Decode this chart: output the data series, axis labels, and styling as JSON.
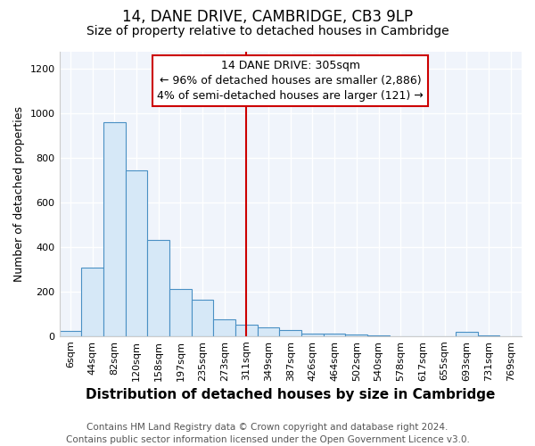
{
  "title": "14, DANE DRIVE, CAMBRIDGE, CB3 9LP",
  "subtitle": "Size of property relative to detached houses in Cambridge",
  "xlabel": "Distribution of detached houses by size in Cambridge",
  "ylabel": "Number of detached properties",
  "categories": [
    "6sqm",
    "44sqm",
    "82sqm",
    "120sqm",
    "158sqm",
    "197sqm",
    "235sqm",
    "273sqm",
    "311sqm",
    "349sqm",
    "387sqm",
    "426sqm",
    "464sqm",
    "502sqm",
    "540sqm",
    "578sqm",
    "617sqm",
    "655sqm",
    "693sqm",
    "731sqm",
    "769sqm"
  ],
  "values": [
    25,
    307,
    962,
    743,
    433,
    212,
    163,
    75,
    50,
    40,
    28,
    12,
    10,
    8,
    5,
    0,
    0,
    0,
    18,
    3,
    0
  ],
  "bar_color": "#d6e8f7",
  "bar_edge_color": "#4a90c4",
  "vline_x_idx": 8,
  "vline_color": "#cc0000",
  "annotation_line1": "14 DANE DRIVE: 305sqm",
  "annotation_line2": "← 96% of detached houses are smaller (2,886)",
  "annotation_line3": "4% of semi-detached houses are larger (121) →",
  "annotation_box_color": "#ffffff",
  "annotation_box_edge": "#cc0000",
  "ylim": [
    0,
    1280
  ],
  "yticks": [
    0,
    200,
    400,
    600,
    800,
    1000,
    1200
  ],
  "footnote": "Contains HM Land Registry data © Crown copyright and database right 2024.\nContains public sector information licensed under the Open Government Licence v3.0.",
  "bg_color": "#ffffff",
  "plot_bg_color": "#f0f4fb",
  "title_fontsize": 12,
  "subtitle_fontsize": 10,
  "xlabel_fontsize": 11,
  "ylabel_fontsize": 9,
  "tick_fontsize": 8,
  "annot_fontsize": 9,
  "footnote_fontsize": 7.5,
  "grid_color": "#ffffff",
  "grid_linewidth": 1.0
}
